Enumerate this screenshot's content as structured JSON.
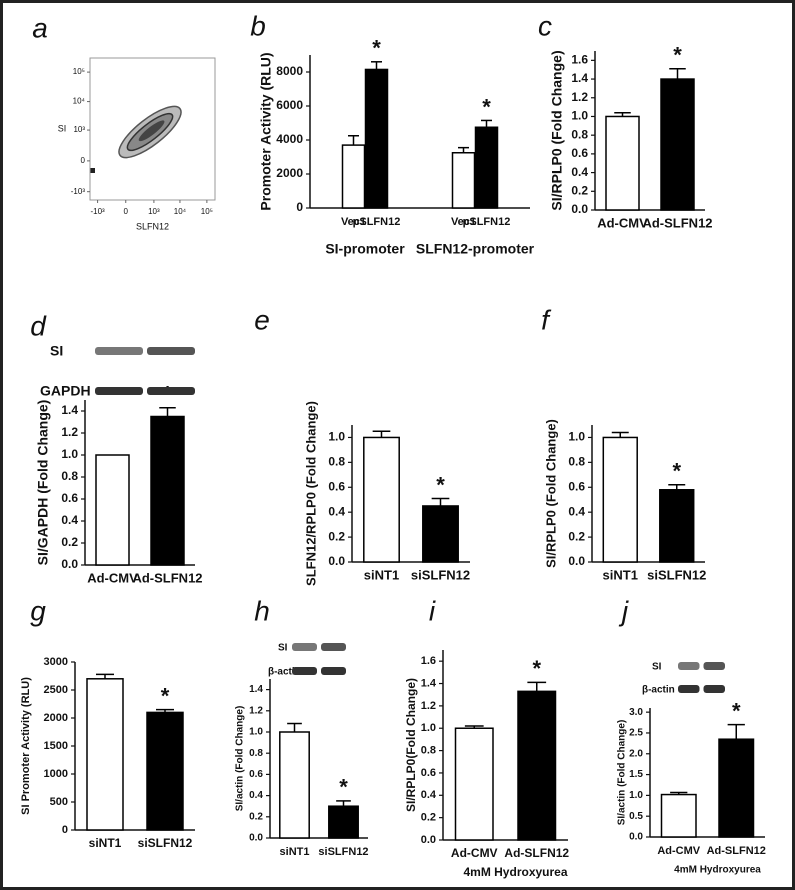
{
  "chart_data": [
    {
      "label": "a",
      "type": "scatter",
      "xlabel": "SLFN12",
      "ylabel": "SI",
      "scale": "biexponential",
      "xlim": [
        -2000,
        200000
      ],
      "ylim": [
        -2000,
        300000
      ],
      "xticks": [
        {
          "value": -1000,
          "label": "-10³"
        },
        0,
        {
          "value": 1000,
          "label": "10³"
        },
        {
          "value": 10000,
          "label": "10⁴"
        },
        {
          "value": 100000,
          "label": "10⁵"
        }
      ],
      "yticks": [
        {
          "value": -1000,
          "label": "-10³"
        },
        0,
        {
          "value": 1000,
          "label": "10³"
        },
        {
          "value": 10000,
          "label": "10⁴"
        },
        {
          "value": 100000,
          "label": "10⁵"
        }
      ]
    },
    {
      "label": "b",
      "type": "bar",
      "ylabel": "Promoter Activity (RLU)",
      "categories": [
        "Vec1",
        "pSLFN12",
        "Vec1",
        "pSLFN12"
      ],
      "groups": [
        "SI-promoter",
        "SLFN12-promoter"
      ],
      "values": [
        3700,
        8150,
        3250,
        4750
      ],
      "errors": [
        550,
        450,
        300,
        400
      ],
      "colors": [
        "#ffffff",
        "#000000",
        "#ffffff",
        "#000000"
      ],
      "significance": [
        null,
        "*",
        null,
        "*"
      ],
      "ylim": [
        0,
        9000
      ],
      "yticks": [
        0,
        2000,
        4000,
        6000,
        8000
      ]
    },
    {
      "label": "c",
      "type": "bar",
      "ylabel": "SI/RPLP0 (Fold Change)",
      "categories": [
        "Ad-CMV",
        "Ad-SLFN12"
      ],
      "values": [
        1.0,
        1.4
      ],
      "errors": [
        0.04,
        0.11
      ],
      "colors": [
        "#ffffff",
        "#000000"
      ],
      "significance": [
        null,
        "*"
      ],
      "ylim": [
        0,
        1.7
      ],
      "yticks": [
        {
          "value": 0,
          "label": "0.0"
        },
        0.2,
        0.4,
        0.6,
        0.8,
        {
          "value": 1,
          "label": "1.0"
        },
        1.2,
        1.4,
        1.6
      ]
    },
    {
      "label": "d",
      "type": "bar",
      "ylabel": "SI/GAPDH (Fold Change)",
      "blot_labels": [
        "SI",
        "GAPDH"
      ],
      "categories": [
        "Ad-CMV",
        "Ad-SLFN12"
      ],
      "values": [
        1.0,
        1.35
      ],
      "errors": [
        null,
        0.08
      ],
      "colors": [
        "#ffffff",
        "#000000"
      ],
      "significance": [
        null,
        "*"
      ],
      "ylim": [
        0,
        1.5
      ],
      "yticks": [
        {
          "value": 0,
          "label": "0.0"
        },
        0.2,
        0.4,
        0.6,
        0.8,
        {
          "value": 1,
          "label": "1.0"
        },
        1.2,
        1.4
      ]
    },
    {
      "label": "e",
      "type": "bar",
      "ylabel": "SLFN12/RPLP0 (Fold Change)",
      "categories": [
        "siNT1",
        "siSLFN12"
      ],
      "values": [
        1.0,
        0.45
      ],
      "errors": [
        0.05,
        0.06
      ],
      "colors": [
        "#ffffff",
        "#000000"
      ],
      "significance": [
        null,
        "*"
      ],
      "ylim": [
        0,
        1.1
      ],
      "yticks": [
        {
          "value": 0,
          "label": "0.0"
        },
        0.2,
        0.4,
        0.6,
        0.8,
        {
          "value": 1,
          "label": "1.0"
        }
      ]
    },
    {
      "label": "f",
      "type": "bar",
      "ylabel": "SI/RPLP0 (Fold Change)",
      "categories": [
        "siNT1",
        "siSLFN12"
      ],
      "values": [
        1.0,
        0.58
      ],
      "errors": [
        0.04,
        0.04
      ],
      "colors": [
        "#ffffff",
        "#000000"
      ],
      "significance": [
        null,
        "*"
      ],
      "ylim": [
        0,
        1.1
      ],
      "yticks": [
        {
          "value": 0,
          "label": "0.0"
        },
        0.2,
        0.4,
        0.6,
        0.8,
        {
          "value": 1,
          "label": "1.0"
        }
      ]
    },
    {
      "label": "g",
      "type": "bar",
      "ylabel": "SI Promoter Activity (RLU)",
      "categories": [
        "siNT1",
        "siSLFN12"
      ],
      "values": [
        2700,
        2100
      ],
      "errors": [
        80,
        50
      ],
      "colors": [
        "#ffffff",
        "#000000"
      ],
      "significance": [
        null,
        "*"
      ],
      "ylim": [
        0,
        3000
      ],
      "yticks": [
        0,
        500,
        1000,
        1500,
        2000,
        2500,
        3000
      ]
    },
    {
      "label": "h",
      "type": "bar",
      "ylabel": "SI/actin (Fold Change)",
      "blot_labels": [
        "SI",
        "β-actin"
      ],
      "categories": [
        "siNT1",
        "siSLFN12"
      ],
      "values": [
        1.0,
        0.3
      ],
      "errors": [
        0.08,
        0.05
      ],
      "colors": [
        "#ffffff",
        "#000000"
      ],
      "significance": [
        null,
        "*"
      ],
      "ylim": [
        0,
        1.5
      ],
      "yticks": [
        {
          "value": 0,
          "label": "0.0"
        },
        0.2,
        0.4,
        0.6,
        0.8,
        {
          "value": 1,
          "label": "1.0"
        },
        1.2,
        1.4
      ]
    },
    {
      "label": "i",
      "type": "bar",
      "ylabel": "SI/RPLP0(Fold Change)",
      "xlabel": "4mM Hydroxyurea",
      "categories": [
        "Ad-CMV",
        "Ad-SLFN12"
      ],
      "values": [
        1.0,
        1.33
      ],
      "errors": [
        0.02,
        0.08
      ],
      "colors": [
        "#ffffff",
        "#000000"
      ],
      "significance": [
        null,
        "*"
      ],
      "ylim": [
        0,
        1.7
      ],
      "yticks": [
        {
          "value": 0,
          "label": "0.0"
        },
        0.2,
        0.4,
        0.6,
        0.8,
        {
          "value": 1,
          "label": "1.0"
        },
        1.2,
        1.4,
        1.6
      ]
    },
    {
      "label": "j",
      "type": "bar",
      "ylabel": "SI/actin (Fold Change)",
      "xlabel": "4mM Hydroxyurea",
      "blot_labels": [
        "SI",
        "β-actin"
      ],
      "categories": [
        "Ad-CMV",
        "Ad-SLFN12"
      ],
      "values": [
        1.02,
        2.35
      ],
      "errors": [
        0.05,
        0.35
      ],
      "colors": [
        "#ffffff",
        "#000000"
      ],
      "significance": [
        null,
        "*"
      ],
      "ylim": [
        0,
        3.1
      ],
      "yticks": [
        {
          "value": 0,
          "label": "0.0"
        },
        0.5,
        {
          "value": 1,
          "label": "1.0"
        },
        1.5,
        {
          "value": 2,
          "label": "2.0"
        },
        2.5,
        {
          "value": 3,
          "label": "3.0"
        }
      ]
    }
  ]
}
